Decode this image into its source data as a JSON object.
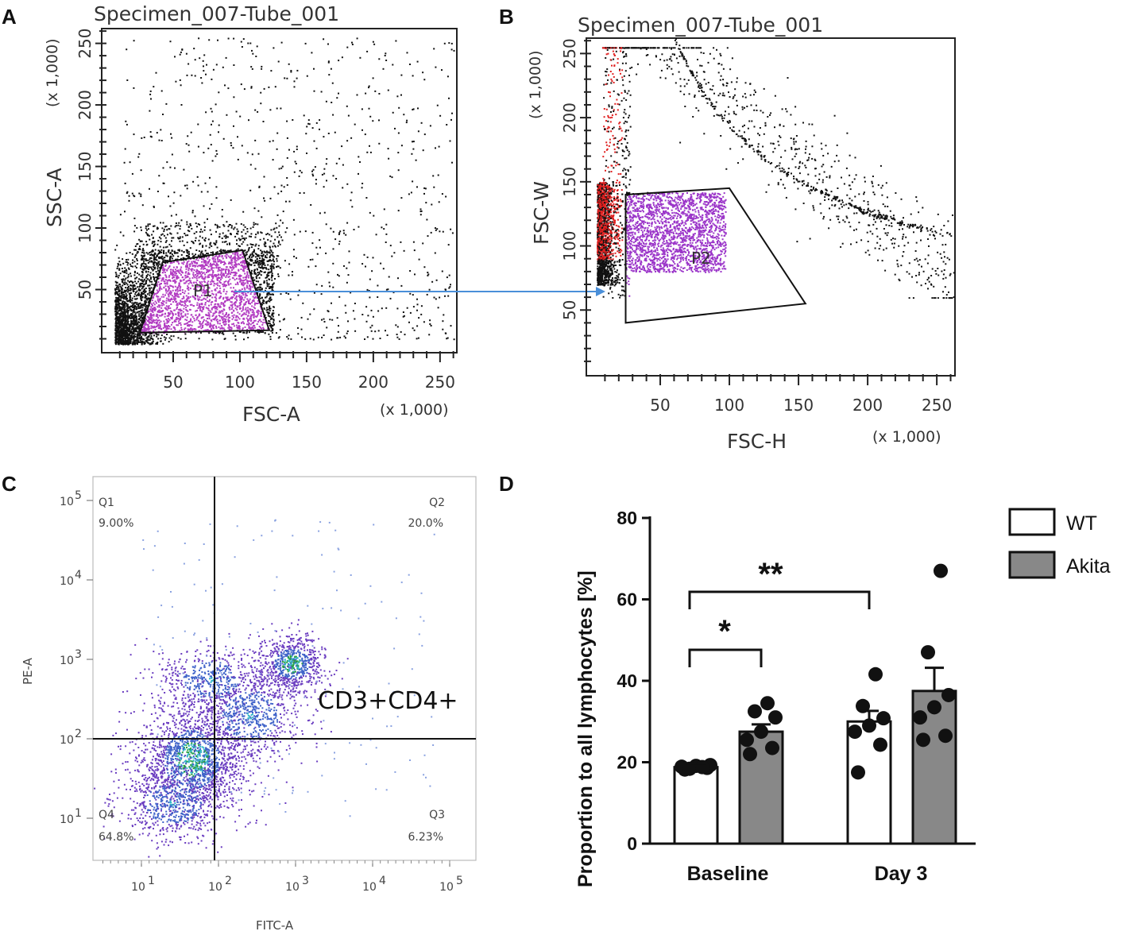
{
  "chart_data": [
    {
      "panel": "A",
      "type": "scatter",
      "title": "Specimen_007-Tube_001",
      "xlabel": "FSC-A",
      "ylabel": "SSC-A",
      "x_multiplier": "(x 1,000)",
      "y_multiplier": "(x 1,000)",
      "xlim": [
        0,
        262
      ],
      "ylim": [
        0,
        262
      ],
      "x_ticks": [
        "50",
        "100",
        "150",
        "200",
        "250"
      ],
      "y_ticks": [
        "50",
        "100",
        "150",
        "200",
        "250"
      ],
      "gate": {
        "name": "P1",
        "vertices": [
          [
            25,
            15
          ],
          [
            42,
            72
          ],
          [
            102,
            82
          ],
          [
            122,
            17
          ]
        ]
      },
      "colors": {
        "events": "#111111",
        "gated": "#b23cc2"
      }
    },
    {
      "panel": "B",
      "type": "scatter",
      "title": "Specimen_007-Tube_001",
      "xlabel": "FSC-H",
      "ylabel": "FSC-W",
      "x_multiplier": "(x 1,000)",
      "y_multiplier": "(x 1,000)",
      "xlim": [
        0,
        262
      ],
      "ylim": [
        0,
        262
      ],
      "x_ticks": [
        "50",
        "100",
        "150",
        "200",
        "250"
      ],
      "y_ticks": [
        "50",
        "100",
        "150",
        "200",
        "250"
      ],
      "gate": {
        "name": "P2",
        "vertices": [
          [
            25,
            140
          ],
          [
            100,
            145
          ],
          [
            155,
            55
          ],
          [
            25,
            40
          ]
        ]
      },
      "colors": {
        "events": "#111111",
        "gated": "#9b35c9",
        "excluded": "#e02020"
      }
    },
    {
      "panel": "C",
      "type": "scatter",
      "xlabel": "FITC-A",
      "ylabel": "PE-A",
      "x_ticks": [
        "10",
        "10",
        "10",
        "10",
        "10"
      ],
      "x_tick_exps": [
        "1",
        "2",
        "3",
        "4",
        "5"
      ],
      "y_ticks": [
        "10",
        "10",
        "10",
        "10",
        "10"
      ],
      "y_tick_exps": [
        "1",
        "2",
        "3",
        "4",
        "5"
      ],
      "quadrant_threshold": {
        "x": 100,
        "y": 100
      },
      "quadrants": [
        {
          "name": "Q1",
          "percent": "9.00%"
        },
        {
          "name": "Q2",
          "percent": "20.0%"
        },
        {
          "name": "Q3",
          "percent": "6.23%"
        },
        {
          "name": "Q4",
          "percent": "64.8%"
        }
      ],
      "annotation": "CD3+CD4+"
    },
    {
      "panel": "D",
      "type": "bar",
      "ylabel": "Proportion to all lymphocytes [%]",
      "ylim": [
        0,
        80
      ],
      "y_ticks": [
        "0",
        "20",
        "40",
        "60",
        "80"
      ],
      "categories": [
        "Baseline",
        "Day 3"
      ],
      "series": [
        {
          "name": "WT",
          "color": "#ffffff",
          "values": [
            18.8,
            30.0
          ],
          "sem": [
            0.4,
            2.6
          ],
          "points": [
            [
              18.2,
              18.6,
              18.9,
              19.1,
              19.3,
              18.4,
              18.8
            ],
            [
              17.5,
              24.3,
              27.5,
              29.0,
              30.8,
              33.8,
              41.6
            ]
          ]
        },
        {
          "name": "Akita",
          "color": "#888888",
          "values": [
            27.5,
            37.5
          ],
          "sem": [
            1.8,
            5.7
          ],
          "points": [
            [
              22.0,
              23.5,
              25.5,
              27.5,
              31.0,
              32.5,
              34.5
            ],
            [
              25.5,
              26.5,
              31.0,
              33.5,
              36.5,
              47.0,
              67.0
            ]
          ]
        }
      ],
      "significance": [
        {
          "label": "*",
          "from": "Baseline WT",
          "to": "Baseline Akita"
        },
        {
          "label": "**",
          "from": "Baseline WT",
          "to": "Day 3 WT"
        }
      ]
    }
  ]
}
